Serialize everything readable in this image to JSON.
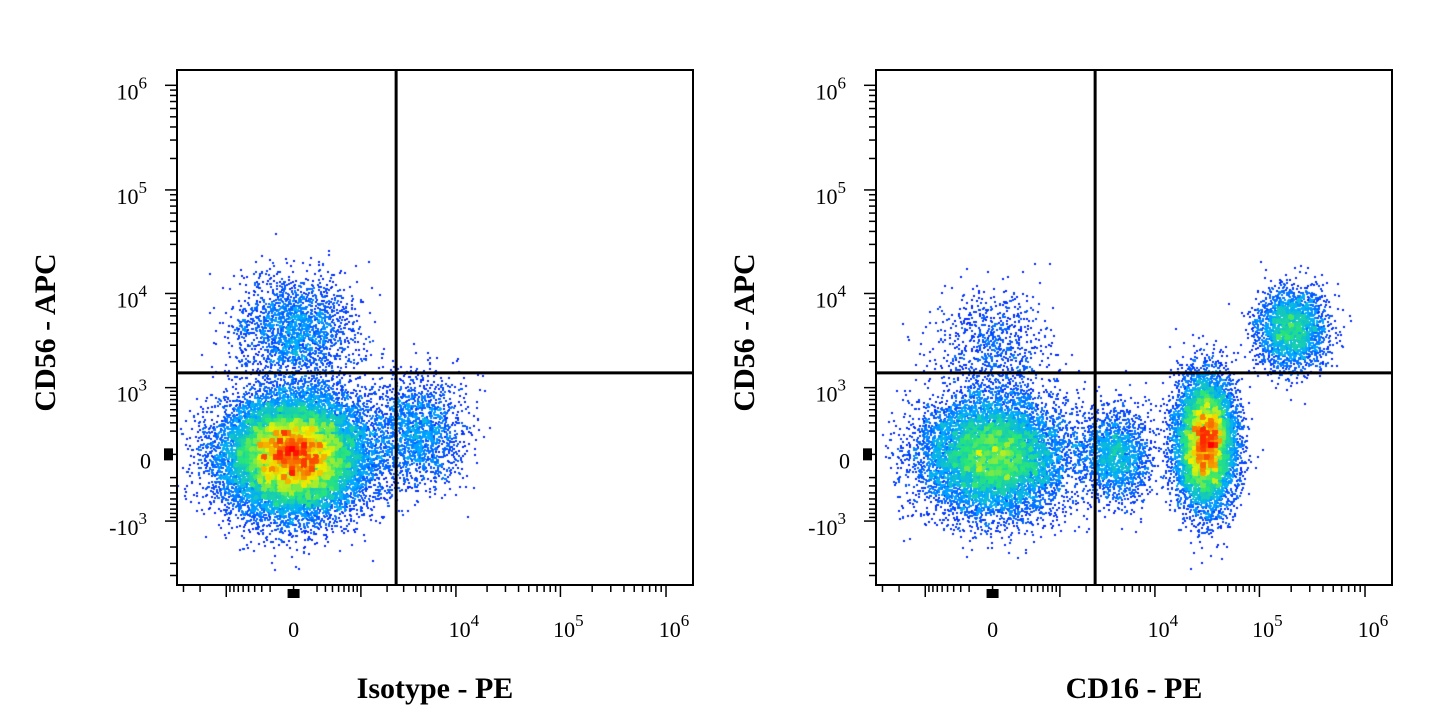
{
  "chart_data": [
    {
      "type": "scatter",
      "subtype": "flow-cytometry-density-dot-plot",
      "title": "",
      "xlabel": "Isotype - PE",
      "ylabel": "CD56 - APC",
      "x_scale": "biexponential",
      "y_scale": "biexponential",
      "x_tick_labels": [
        "0",
        "10^4",
        "10^5",
        "10^6"
      ],
      "y_tick_labels": [
        "10^6",
        "10^5",
        "10^4",
        "10^3",
        "0",
        "-10^3"
      ],
      "quadrant_gate": {
        "x": 2500,
        "y": 1500
      },
      "density_colormap": [
        "#0000ff",
        "#00c0ff",
        "#00ff80",
        "#ffff00",
        "#ff0000"
      ],
      "populations": [
        {
          "name": "",
          "x_center": 0,
          "y_center": 0,
          "x_spread_decades": 0.6,
          "y_spread_decades": 0.5,
          "relative_count": 0.85,
          "quadrant": "lower-left"
        },
        {
          "name": "",
          "x_center": 0,
          "y_center": 4500,
          "x_spread_decades": 0.5,
          "y_spread_decades": 0.45,
          "relative_count": 0.08,
          "quadrant": "upper-left"
        },
        {
          "name": "",
          "x_center": 4000,
          "y_center": 200,
          "x_spread_decades": 0.4,
          "y_spread_decades": 0.5,
          "relative_count": 0.07,
          "quadrant": "lower-right"
        }
      ],
      "grid": false,
      "legend": "none"
    },
    {
      "type": "scatter",
      "subtype": "flow-cytometry-density-dot-plot",
      "title": "",
      "xlabel": "CD16 - PE",
      "ylabel": "CD56 - APC",
      "x_scale": "biexponential",
      "y_scale": "biexponential",
      "x_tick_labels": [
        "0",
        "10^4",
        "10^5",
        "10^6"
      ],
      "y_tick_labels": [
        "10^6",
        "10^5",
        "10^4",
        "10^3",
        "0",
        "-10^3"
      ],
      "quadrant_gate": {
        "x": 2500,
        "y": 1500
      },
      "density_colormap": [
        "#0000ff",
        "#00c0ff",
        "#00ff80",
        "#ffff00",
        "#ff0000"
      ],
      "populations": [
        {
          "name": "",
          "x_center": 0,
          "y_center": 0,
          "x_spread_decades": 0.6,
          "y_spread_decades": 0.5,
          "relative_count": 0.42,
          "quadrant": "lower-left"
        },
        {
          "name": "",
          "x_center": 30000,
          "y_center": 100,
          "x_spread_decades": 0.25,
          "y_spread_decades": 0.55,
          "relative_count": 0.38,
          "quadrant": "lower-right"
        },
        {
          "name": "",
          "x_center": 4000,
          "y_center": 0,
          "x_spread_decades": 0.3,
          "y_spread_decades": 0.4,
          "relative_count": 0.07,
          "quadrant": "lower-right"
        },
        {
          "name": "",
          "x_center": 200000,
          "y_center": 4500,
          "x_spread_decades": 0.3,
          "y_spread_decades": 0.35,
          "relative_count": 0.1,
          "quadrant": "upper-right"
        },
        {
          "name": "",
          "x_center": 0,
          "y_center": 3000,
          "x_spread_decades": 0.5,
          "y_spread_decades": 0.5,
          "relative_count": 0.03,
          "quadrant": "upper-left"
        }
      ],
      "grid": false,
      "legend": "none"
    }
  ]
}
